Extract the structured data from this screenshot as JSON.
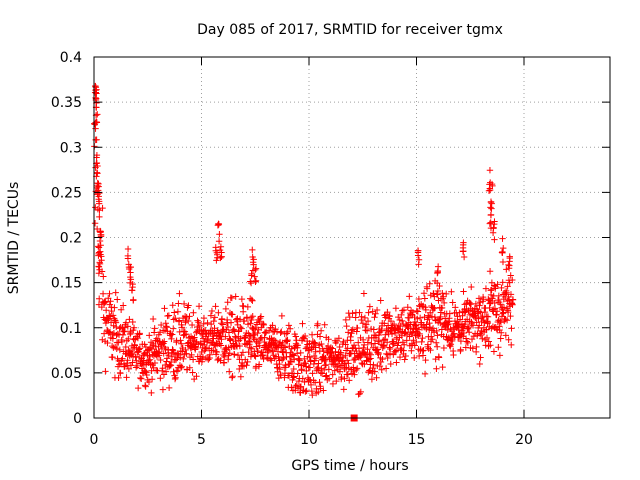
{
  "chart_data": {
    "type": "scatter",
    "title": "Day 085 of 2017, SRMTID for receiver tgmx",
    "xlabel": "GPS time / hours",
    "ylabel": "SRMTID / TECUs",
    "xlim": [
      0,
      24
    ],
    "ylim": [
      0,
      0.4
    ],
    "xticks": [
      0,
      5,
      10,
      15,
      20
    ],
    "xtick_labels": [
      "0",
      "5",
      "10",
      "15",
      "20"
    ],
    "yticks": [
      0,
      0.05,
      0.1,
      0.15,
      0.2,
      0.25,
      0.3,
      0.35,
      0.4
    ],
    "ytick_labels": [
      "0",
      "0.05",
      "0.1",
      "0.15",
      "0.2",
      "0.25",
      "0.3",
      "0.35",
      "0.4"
    ],
    "grid": true,
    "marker": "plus",
    "color": "#ff0000",
    "trend": [
      {
        "x": 0.0,
        "y": 0.05
      },
      {
        "x": 0.1,
        "y": 0.3
      },
      {
        "x": 0.2,
        "y": 0.2
      },
      {
        "x": 0.5,
        "y": 0.11
      },
      {
        "x": 1.0,
        "y": 0.09
      },
      {
        "x": 1.5,
        "y": 0.08
      },
      {
        "x": 2.0,
        "y": 0.07
      },
      {
        "x": 2.5,
        "y": 0.065
      },
      {
        "x": 3.0,
        "y": 0.075
      },
      {
        "x": 4.0,
        "y": 0.085
      },
      {
        "x": 5.0,
        "y": 0.085
      },
      {
        "x": 6.0,
        "y": 0.09
      },
      {
        "x": 7.0,
        "y": 0.085
      },
      {
        "x": 8.0,
        "y": 0.08
      },
      {
        "x": 9.0,
        "y": 0.07
      },
      {
        "x": 9.5,
        "y": 0.06
      },
      {
        "x": 10.0,
        "y": 0.06
      },
      {
        "x": 11.0,
        "y": 0.065
      },
      {
        "x": 12.0,
        "y": 0.075
      },
      {
        "x": 13.0,
        "y": 0.085
      },
      {
        "x": 14.0,
        "y": 0.09
      },
      {
        "x": 15.0,
        "y": 0.1
      },
      {
        "x": 16.0,
        "y": 0.11
      },
      {
        "x": 17.0,
        "y": 0.1
      },
      {
        "x": 18.0,
        "y": 0.11
      },
      {
        "x": 19.0,
        "y": 0.12
      },
      {
        "x": 19.5,
        "y": 0.125
      }
    ],
    "spikes": [
      {
        "x": 0.05,
        "y": 0.33
      },
      {
        "x": 0.08,
        "y": 0.37
      },
      {
        "x": 0.1,
        "y": 0.38
      },
      {
        "x": 0.12,
        "y": 0.35
      },
      {
        "x": 0.15,
        "y": 0.3
      },
      {
        "x": 0.2,
        "y": 0.26
      },
      {
        "x": 0.25,
        "y": 0.25
      },
      {
        "x": 0.3,
        "y": 0.21
      },
      {
        "x": 0.25,
        "y": 0.19
      },
      {
        "x": 1.6,
        "y": 0.19
      },
      {
        "x": 1.7,
        "y": 0.17
      },
      {
        "x": 1.8,
        "y": 0.15
      },
      {
        "x": 5.7,
        "y": 0.2
      },
      {
        "x": 5.8,
        "y": 0.22
      },
      {
        "x": 5.9,
        "y": 0.19
      },
      {
        "x": 7.4,
        "y": 0.19
      },
      {
        "x": 7.5,
        "y": 0.17
      },
      {
        "x": 7.3,
        "y": 0.16
      },
      {
        "x": 18.4,
        "y": 0.28
      },
      {
        "x": 18.5,
        "y": 0.26
      },
      {
        "x": 18.45,
        "y": 0.24
      },
      {
        "x": 18.6,
        "y": 0.22
      },
      {
        "x": 17.2,
        "y": 0.2
      },
      {
        "x": 19.0,
        "y": 0.2
      },
      {
        "x": 19.3,
        "y": 0.18
      },
      {
        "x": 15.1,
        "y": 0.19
      },
      {
        "x": 16.0,
        "y": 0.17
      }
    ],
    "special_point": {
      "x": 12.1,
      "y": 0.0,
      "marker": "square"
    }
  }
}
